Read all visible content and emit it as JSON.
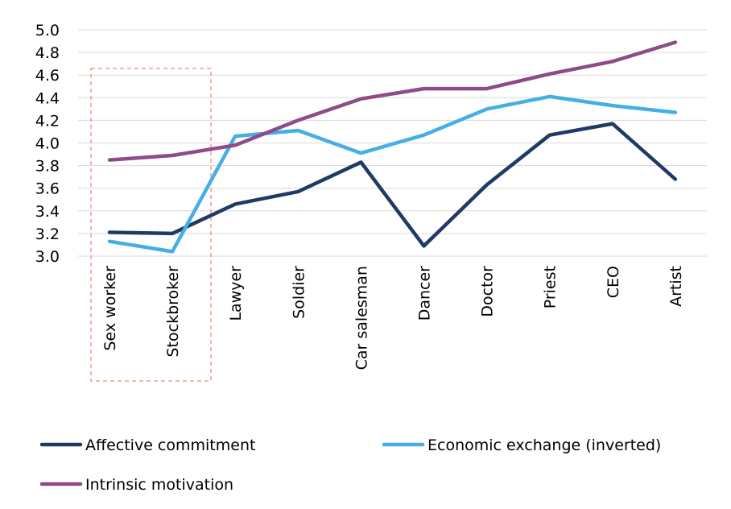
{
  "chart_data": {
    "type": "line",
    "categories": [
      "Sex worker",
      "Stockbroker",
      "Lawyer",
      "Soldier",
      "Car salesman",
      "Dancer",
      "Doctor",
      "Priest",
      "CEO",
      "Artist"
    ],
    "series": [
      {
        "name": "Affective commitment",
        "color": "#1f3b63",
        "values": [
          3.21,
          3.2,
          3.46,
          3.57,
          3.83,
          3.09,
          3.63,
          4.07,
          4.17,
          3.68
        ]
      },
      {
        "name": "Economic exchange (inverted)",
        "color": "#45aee5",
        "values": [
          3.13,
          3.04,
          4.06,
          4.11,
          3.91,
          4.07,
          4.3,
          4.41,
          4.33,
          4.27
        ]
      },
      {
        "name": "Intrinsic motivation",
        "color": "#8e4a8a",
        "values": [
          3.85,
          3.89,
          3.98,
          4.2,
          4.39,
          4.48,
          4.48,
          4.61,
          4.72,
          4.89
        ]
      }
    ],
    "ylim": [
      3.0,
      5.0
    ],
    "yticks": [
      "3.0",
      "3.2",
      "3.4",
      "3.6",
      "3.8",
      "4.0",
      "4.2",
      "4.4",
      "4.6",
      "4.8",
      "5.0"
    ],
    "grid": true,
    "legend_position": "bottom",
    "highlight": {
      "categories": [
        "Sex worker",
        "Stockbroker"
      ],
      "style": "dashed box",
      "color": "#f08a7e"
    }
  }
}
